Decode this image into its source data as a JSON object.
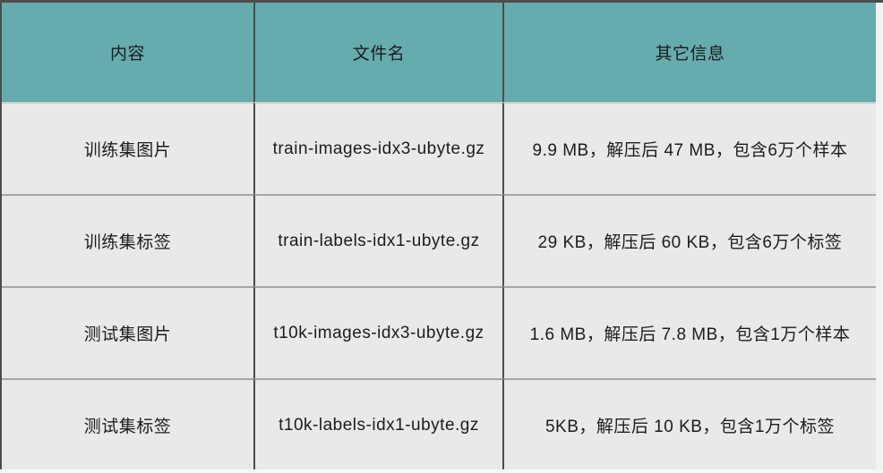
{
  "table": {
    "columns": [
      {
        "key": "content",
        "label": "内容"
      },
      {
        "key": "filename",
        "label": "文件名"
      },
      {
        "key": "info",
        "label": "其它信息"
      }
    ],
    "rows": [
      {
        "content": "训练集图片",
        "filename": "train-images-idx3-ubyte.gz",
        "info": "9.9 MB，解压后 47 MB，包含6万个样本"
      },
      {
        "content": "训练集标签",
        "filename": "train-labels-idx1-ubyte.gz",
        "info": "29 KB，解压后 60 KB，包含6万个标签"
      },
      {
        "content": "测试集图片",
        "filename": "t10k-images-idx3-ubyte.gz",
        "info": "1.6 MB，解压后 7.8 MB，包含1万个样本"
      },
      {
        "content": "测试集标签",
        "filename": "t10k-labels-idx1-ubyte.gz",
        "info": "5KB，解压后 10 KB，包含1万个标签"
      }
    ]
  },
  "colors": {
    "header_bg": "#66abae",
    "row_bg": "#e9e9e9",
    "border_dark": "#4d4d4d",
    "border_light": "#a6a6a6",
    "text": "#1c1c1c"
  }
}
